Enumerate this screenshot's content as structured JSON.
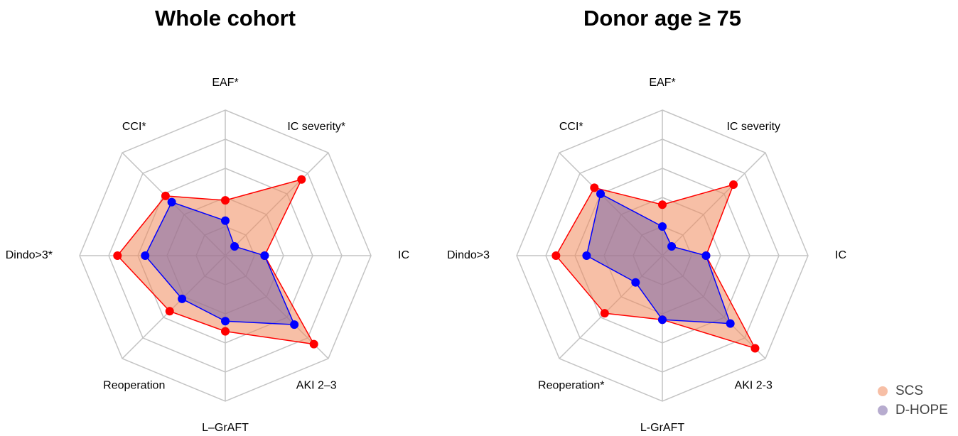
{
  "chart_data": [
    {
      "type": "radar",
      "title": "Whole cohort",
      "categories": [
        "EAF*",
        "IC severity*",
        "IC",
        "AKI 2–3",
        "L–GrAFT",
        "Reoperation",
        "Dindo>3*",
        "CCI*"
      ],
      "rlim": [
        0,
        5
      ],
      "rticks": [
        1,
        2,
        3,
        4,
        5
      ],
      "grid": true,
      "series": [
        {
          "name": "SCS",
          "color": "#ff0000",
          "fill": "#f08a5d",
          "values": [
            1.9,
            3.7,
            1.35,
            4.3,
            2.6,
            2.7,
            3.7,
            2.9
          ]
        },
        {
          "name": "D-HOPE",
          "color": "#0000ff",
          "fill": "#7b68a8",
          "values": [
            1.2,
            0.45,
            1.35,
            3.35,
            2.25,
            2.1,
            2.75,
            2.6
          ]
        }
      ]
    },
    {
      "type": "radar",
      "title": "Donor age ≥ 75",
      "categories": [
        "EAF*",
        "IC severity",
        "IC",
        "AKI 2-3",
        "L-GrAFT",
        "Reoperation*",
        "Dindo>3",
        "CCI*"
      ],
      "rlim": [
        0,
        5
      ],
      "rticks": [
        1,
        2,
        3,
        4,
        5
      ],
      "grid": true,
      "legend": "bottom-right",
      "series": [
        {
          "name": "SCS",
          "color": "#ff0000",
          "fill": "#f08a5d",
          "values": [
            1.75,
            3.45,
            1.5,
            4.5,
            2.2,
            2.8,
            3.65,
            3.3
          ]
        },
        {
          "name": "D-HOPE",
          "color": "#0000ff",
          "fill": "#7b68a8",
          "values": [
            1.0,
            0.45,
            1.5,
            3.3,
            2.2,
            1.3,
            2.6,
            3.0
          ]
        }
      ]
    }
  ]
}
